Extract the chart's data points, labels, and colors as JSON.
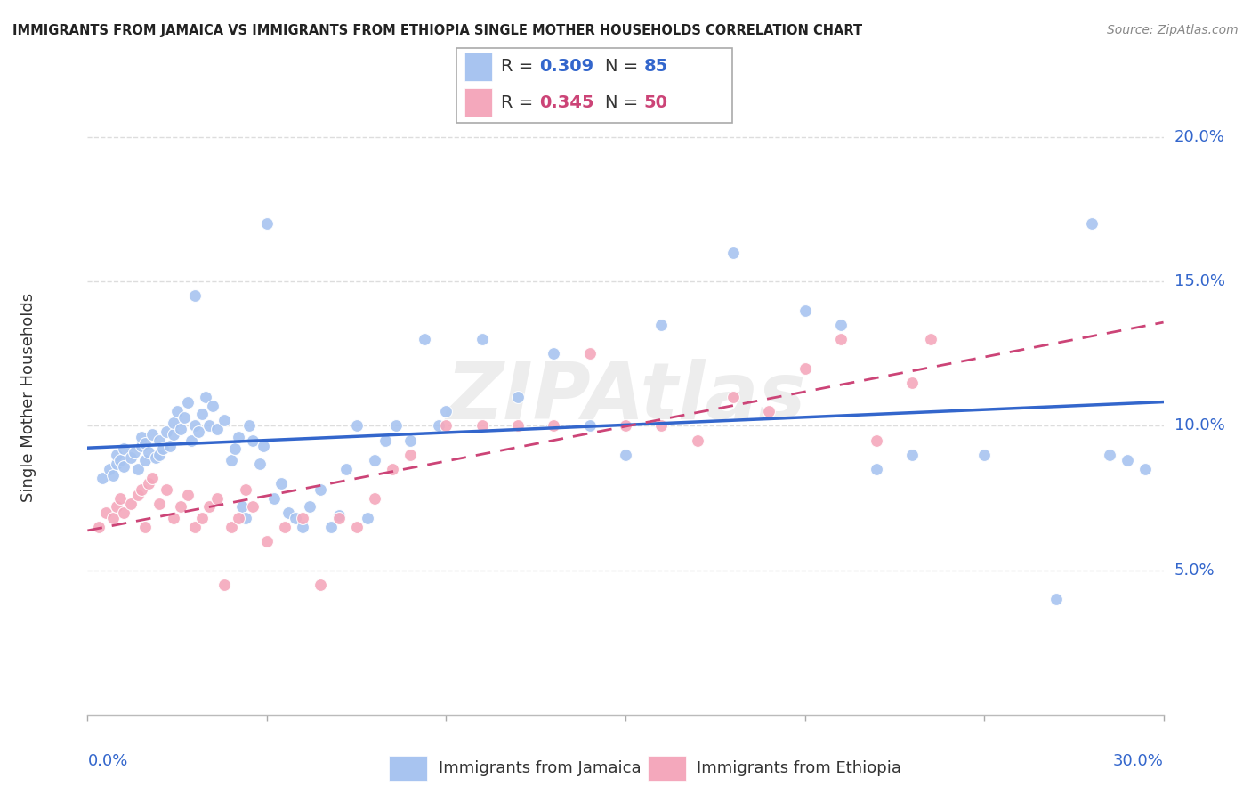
{
  "title": "IMMIGRANTS FROM JAMAICA VS IMMIGRANTS FROM ETHIOPIA SINGLE MOTHER HOUSEHOLDS CORRELATION CHART",
  "source": "Source: ZipAtlas.com",
  "ylabel": "Single Mother Households",
  "xmin": 0.0,
  "xmax": 0.3,
  "ymin": 0.0,
  "ymax": 0.22,
  "yticks": [
    0.05,
    0.1,
    0.15,
    0.2
  ],
  "ytick_labels": [
    "5.0%",
    "10.0%",
    "15.0%",
    "20.0%"
  ],
  "xticks": [
    0.0,
    0.05,
    0.1,
    0.15,
    0.2,
    0.25,
    0.3
  ],
  "xtick_labels": [
    "0.0%",
    "",
    "",
    "",
    "",
    "",
    "30.0%"
  ],
  "watermark": "ZIPAtlas",
  "jamaica_R": "0.309",
  "jamaica_N": "85",
  "ethiopia_R": "0.345",
  "ethiopia_N": "50",
  "jamaica_color": "#a8c4f0",
  "ethiopia_color": "#f4a8bc",
  "jamaica_line_color": "#3366cc",
  "ethiopia_line_color": "#cc4477",
  "legend_label_jamaica": "Immigrants from Jamaica",
  "legend_label_ethiopia": "Immigrants from Ethiopia",
  "jamaica_x": [
    0.004,
    0.006,
    0.007,
    0.008,
    0.008,
    0.009,
    0.01,
    0.01,
    0.012,
    0.013,
    0.014,
    0.015,
    0.015,
    0.016,
    0.016,
    0.017,
    0.018,
    0.019,
    0.02,
    0.02,
    0.021,
    0.022,
    0.023,
    0.024,
    0.024,
    0.025,
    0.026,
    0.027,
    0.028,
    0.029,
    0.03,
    0.03,
    0.031,
    0.032,
    0.033,
    0.034,
    0.035,
    0.036,
    0.038,
    0.04,
    0.041,
    0.042,
    0.043,
    0.044,
    0.045,
    0.046,
    0.048,
    0.049,
    0.05,
    0.052,
    0.054,
    0.056,
    0.058,
    0.06,
    0.062,
    0.065,
    0.068,
    0.07,
    0.072,
    0.075,
    0.078,
    0.08,
    0.083,
    0.086,
    0.09,
    0.094,
    0.098,
    0.1,
    0.11,
    0.12,
    0.13,
    0.14,
    0.15,
    0.16,
    0.18,
    0.2,
    0.21,
    0.22,
    0.23,
    0.25,
    0.27,
    0.28,
    0.285,
    0.29,
    0.295
  ],
  "jamaica_y": [
    0.082,
    0.085,
    0.083,
    0.087,
    0.09,
    0.088,
    0.086,
    0.092,
    0.089,
    0.091,
    0.085,
    0.093,
    0.096,
    0.088,
    0.094,
    0.091,
    0.097,
    0.089,
    0.09,
    0.095,
    0.092,
    0.098,
    0.093,
    0.097,
    0.101,
    0.105,
    0.099,
    0.103,
    0.108,
    0.095,
    0.1,
    0.145,
    0.098,
    0.104,
    0.11,
    0.1,
    0.107,
    0.099,
    0.102,
    0.088,
    0.092,
    0.096,
    0.072,
    0.068,
    0.1,
    0.095,
    0.087,
    0.093,
    0.17,
    0.075,
    0.08,
    0.07,
    0.068,
    0.065,
    0.072,
    0.078,
    0.065,
    0.069,
    0.085,
    0.1,
    0.068,
    0.088,
    0.095,
    0.1,
    0.095,
    0.13,
    0.1,
    0.105,
    0.13,
    0.11,
    0.125,
    0.1,
    0.09,
    0.135,
    0.16,
    0.14,
    0.135,
    0.085,
    0.09,
    0.09,
    0.04,
    0.17,
    0.09,
    0.088,
    0.085
  ],
  "ethiopia_x": [
    0.003,
    0.005,
    0.007,
    0.008,
    0.009,
    0.01,
    0.012,
    0.014,
    0.015,
    0.016,
    0.017,
    0.018,
    0.02,
    0.022,
    0.024,
    0.026,
    0.028,
    0.03,
    0.032,
    0.034,
    0.036,
    0.038,
    0.04,
    0.042,
    0.044,
    0.046,
    0.05,
    0.055,
    0.06,
    0.065,
    0.07,
    0.075,
    0.08,
    0.085,
    0.09,
    0.1,
    0.11,
    0.12,
    0.13,
    0.14,
    0.15,
    0.16,
    0.17,
    0.18,
    0.19,
    0.2,
    0.21,
    0.22,
    0.23,
    0.235
  ],
  "ethiopia_y": [
    0.065,
    0.07,
    0.068,
    0.072,
    0.075,
    0.07,
    0.073,
    0.076,
    0.078,
    0.065,
    0.08,
    0.082,
    0.073,
    0.078,
    0.068,
    0.072,
    0.076,
    0.065,
    0.068,
    0.072,
    0.075,
    0.045,
    0.065,
    0.068,
    0.078,
    0.072,
    0.06,
    0.065,
    0.068,
    0.045,
    0.068,
    0.065,
    0.075,
    0.085,
    0.09,
    0.1,
    0.1,
    0.1,
    0.1,
    0.125,
    0.1,
    0.1,
    0.095,
    0.11,
    0.105,
    0.12,
    0.13,
    0.095,
    0.115,
    0.13
  ]
}
